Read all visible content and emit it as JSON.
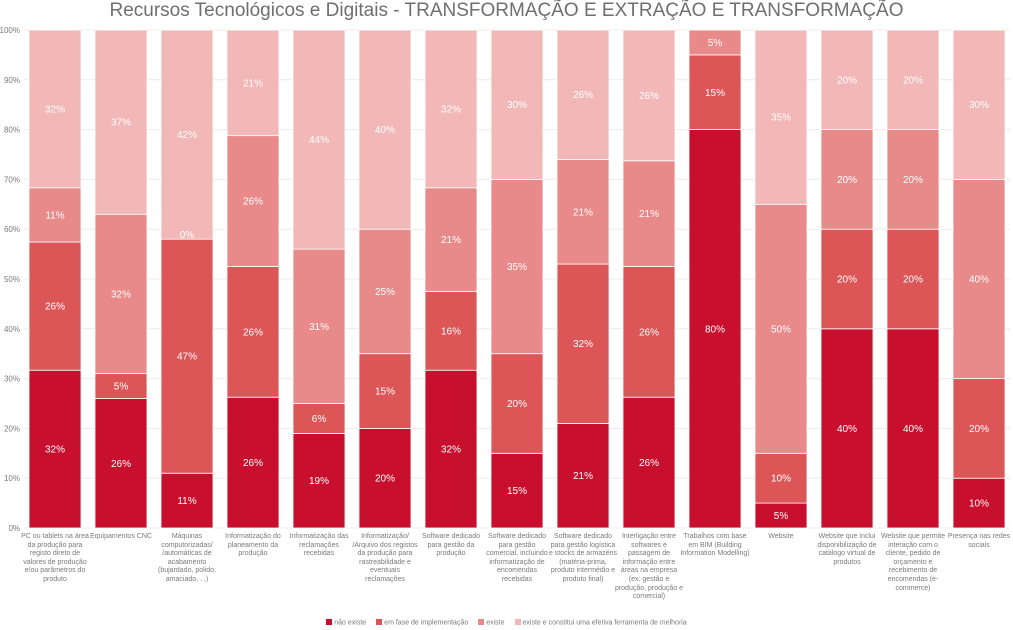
{
  "colors": [
    "#c8102e",
    "#dc5658",
    "#e88a8a",
    "#f2b7b7"
  ],
  "chart_data": {
    "type": "bar",
    "stacked": true,
    "title": "Recursos Tecnológicos e Digitais - TRANSFORMAÇÃO E EXTRAÇÃO E TRANSFORMAÇÃO",
    "ylim": [
      0,
      100
    ],
    "yticks": [
      "0%",
      "10%",
      "20%",
      "30%",
      "40%",
      "50%",
      "60%",
      "70%",
      "80%",
      "90%",
      "100%"
    ],
    "legend_position": "bottom",
    "categories": [
      "PC ou tablets na área da produção para registo direto de valores de produção e/ou parâmetros do produto",
      "Equipamentos CNC",
      "Máquinas computorizadas/ /automáticas de acabamento (bujardado, polido, amaciado, ...)",
      "Informatização do planeamento da produção",
      "Informatização das reclamações recebidas",
      "Informatização/ /Arquivo dos registos da produção para rastreabilidade e eventuais reclamações",
      "Software dedicado para gestão da produção",
      "Software dedicado para gestão comercial, incluindo informatização de encomendas recebidas",
      "Software dedicado para gestão logística e stocks de armazéns (matéria-prima, produto intermédio e produto final)",
      "Interligação entre softwares e passagem de informação entre áreas na empresa (ex: gestão e produção, produção e comercial)",
      "Trabalhos com base em BIM (Building Information Modelling)",
      "Website",
      "Website que inclui disponibilização de catálogo virtual de produtos",
      "Website que permite interação com o cliente, pedido de orçamento e recebimento de encomendas (e-commerce)",
      "Presença nas redes sociais"
    ],
    "series": [
      {
        "name": "não existe",
        "values": [
          32,
          26,
          11,
          26,
          19,
          20,
          32,
          15,
          21,
          26,
          80,
          5,
          40,
          40,
          10
        ]
      },
      {
        "name": "em fase de implementação",
        "values": [
          26,
          5,
          47,
          26,
          6,
          15,
          16,
          20,
          32,
          26,
          15,
          10,
          20,
          20,
          20
        ]
      },
      {
        "name": "existe",
        "values": [
          11,
          32,
          0,
          26,
          31,
          25,
          21,
          35,
          21,
          21,
          5,
          50,
          20,
          20,
          40
        ]
      },
      {
        "name": "existe e constitui uma efetiva ferramenta de melhoria",
        "values": [
          32,
          37,
          42,
          21,
          44,
          40,
          32,
          30,
          26,
          26,
          0,
          35,
          20,
          20,
          30
        ]
      }
    ]
  }
}
